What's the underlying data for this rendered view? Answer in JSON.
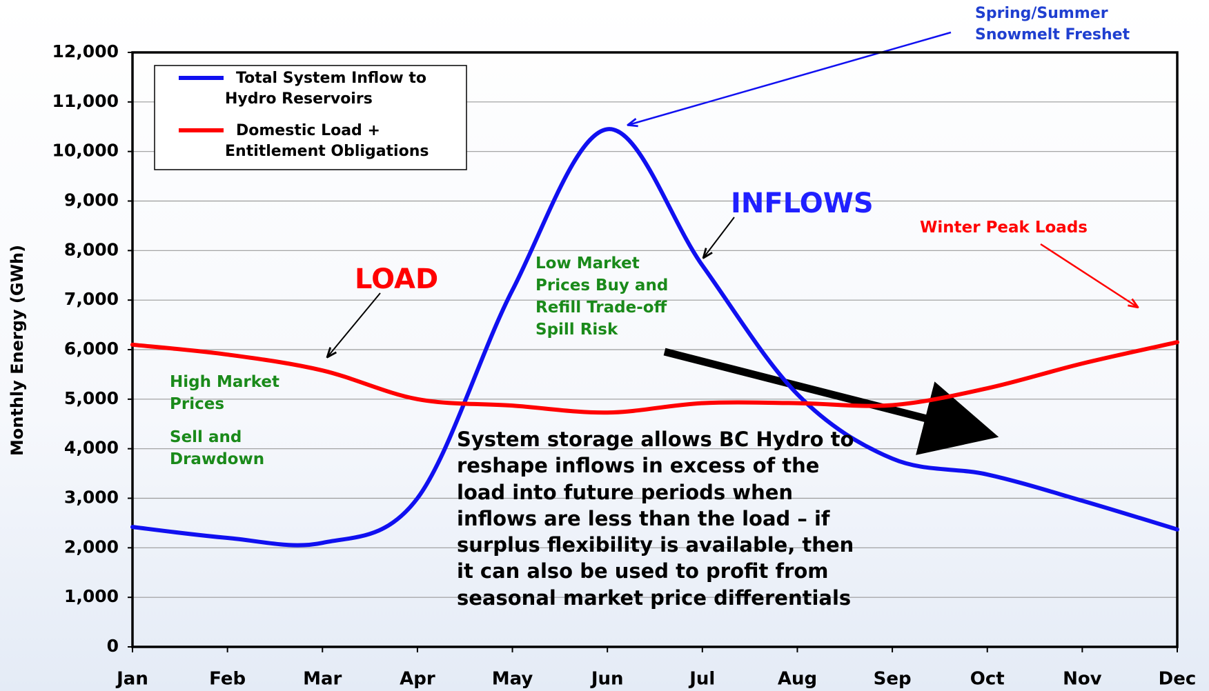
{
  "chart_data": {
    "type": "line",
    "y_label": "Monthly Energy (GWh)",
    "categories": [
      "Jan",
      "Feb",
      "Mar",
      "Apr",
      "May",
      "Jun",
      "Jul",
      "Aug",
      "Sep",
      "Oct",
      "Nov",
      "Dec"
    ],
    "series": [
      {
        "name": "Total System Inflow to\nHydro Reservoirs",
        "color": "#1010f0",
        "values": [
          2420,
          2200,
          2100,
          3000,
          7200,
          10450,
          7700,
          5100,
          3800,
          3480,
          2950,
          2370
        ]
      },
      {
        "name": "Domestic Load +\nEntitlement Obligations",
        "color": "#ff0000",
        "values": [
          6100,
          5900,
          5580,
          5000,
          4870,
          4730,
          4920,
          4920,
          4880,
          5220,
          5720,
          6150
        ]
      }
    ],
    "ylim": [
      0,
      12000
    ],
    "yticks": [
      0,
      {
        "value": 1000,
        "label": "1,000"
      },
      {
        "value": 2000,
        "label": "2,000"
      },
      {
        "value": 3000,
        "label": "3,000"
      },
      {
        "value": 4000,
        "label": "4,000"
      },
      {
        "value": 5000,
        "label": "5,000"
      },
      {
        "value": 6000,
        "label": "6,000"
      },
      {
        "value": 7000,
        "label": "7,000"
      },
      {
        "value": 8000,
        "label": "8,000"
      },
      {
        "value": 9000,
        "label": "9,000"
      },
      {
        "value": 10000,
        "label": "10,000"
      },
      {
        "value": 11000,
        "label": "11,000"
      },
      {
        "value": 12000,
        "label": "12,000"
      }
    ],
    "grid": true,
    "legend": "upper left",
    "annotations": [
      "Spring/Summer\nSnowmelt Freshet",
      "INFLOWS",
      "LOAD",
      "Low Market\nPrices  Buy and\nRefill Trade-off\nSpill Risk",
      "High Market\nPrices",
      "Sell and\nDrawdown",
      "Winter Peak Loads",
      "System storage allows BC Hydro to\nreshape inflows in excess of the\nload into future periods when\ninflows are less than the load – if\nsurplus flexibility is available, then\nit can also be used to profit from\nseasonal market price differentials"
    ]
  }
}
